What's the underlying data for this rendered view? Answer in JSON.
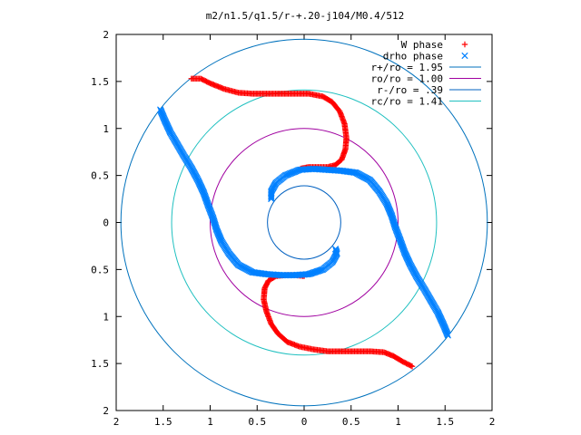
{
  "chart_data": {
    "type": "scatter",
    "title": "m2/n1.5/q1.5/r-+.20-j104/M0.4/512",
    "xlabel": "",
    "ylabel": "",
    "xlim": [
      -2,
      2
    ],
    "ylim": [
      -2,
      2
    ],
    "x_ticks": [
      -2,
      -1.5,
      -1,
      -0.5,
      0,
      0.5,
      1,
      1.5,
      2
    ],
    "y_ticks": [
      -2,
      -1.5,
      -1,
      -0.5,
      0,
      0.5,
      1,
      1.5,
      2
    ],
    "x_tick_labels": [
      "2",
      "1.5",
      "1",
      "0.5",
      "0",
      "0.5",
      "1",
      "1.5",
      "2"
    ],
    "y_tick_labels": [
      "2",
      "1.5",
      "1",
      "0.5",
      "0",
      "0.5",
      "1",
      "1.5",
      "2"
    ],
    "grid": false,
    "legend_position": "top-right",
    "series": [
      {
        "name": "W phase",
        "marker": "plus",
        "color": "#ff0000",
        "points": [
          [
            -1.2,
            1.53
          ],
          [
            -1.1,
            1.53
          ],
          [
            -1.0,
            1.48
          ],
          [
            -0.85,
            1.42
          ],
          [
            -0.7,
            1.38
          ],
          [
            -0.55,
            1.37
          ],
          [
            -0.4,
            1.37
          ],
          [
            -0.25,
            1.37
          ],
          [
            -0.1,
            1.37
          ],
          [
            0.05,
            1.37
          ],
          [
            0.2,
            1.34
          ],
          [
            0.3,
            1.28
          ],
          [
            0.38,
            1.18
          ],
          [
            0.43,
            1.05
          ],
          [
            0.45,
            0.9
          ],
          [
            0.44,
            0.78
          ],
          [
            0.4,
            0.67
          ],
          [
            0.33,
            0.61
          ],
          [
            0.25,
            0.59
          ],
          [
            0.15,
            0.59
          ],
          [
            0.05,
            0.59
          ],
          [
            -0.05,
            0.57
          ],
          [
            1.15,
            -1.53
          ],
          [
            1.05,
            -1.48
          ],
          [
            0.95,
            -1.42
          ],
          [
            0.85,
            -1.38
          ],
          [
            0.7,
            -1.37
          ],
          [
            0.55,
            -1.37
          ],
          [
            0.4,
            -1.37
          ],
          [
            0.25,
            -1.37
          ],
          [
            0.1,
            -1.35
          ],
          [
            -0.05,
            -1.32
          ],
          [
            -0.18,
            -1.27
          ],
          [
            -0.28,
            -1.18
          ],
          [
            -0.35,
            -1.08
          ],
          [
            -0.4,
            -0.95
          ],
          [
            -0.43,
            -0.82
          ],
          [
            -0.42,
            -0.7
          ],
          [
            -0.38,
            -0.62
          ],
          [
            -0.3,
            -0.57
          ],
          [
            -0.2,
            -0.56
          ],
          [
            -0.1,
            -0.56
          ],
          [
            0.0,
            -0.57
          ]
        ]
      },
      {
        "name": "drho phase",
        "marker": "cross",
        "color": "#0080ff",
        "points": [
          [
            -1.53,
            1.2
          ],
          [
            -1.48,
            1.08
          ],
          [
            -1.42,
            0.95
          ],
          [
            -1.35,
            0.83
          ],
          [
            -1.28,
            0.71
          ],
          [
            -1.2,
            0.58
          ],
          [
            -1.13,
            0.45
          ],
          [
            -1.07,
            0.32
          ],
          [
            -1.02,
            0.18
          ],
          [
            -0.97,
            0.05
          ],
          [
            -0.93,
            -0.08
          ],
          [
            -0.88,
            -0.2
          ],
          [
            -0.8,
            -0.33
          ],
          [
            -0.7,
            -0.45
          ],
          [
            -0.55,
            -0.53
          ],
          [
            -0.4,
            -0.55
          ],
          [
            -0.25,
            -0.56
          ],
          [
            -0.1,
            -0.56
          ],
          [
            0.05,
            -0.55
          ],
          [
            0.2,
            -0.5
          ],
          [
            0.3,
            -0.42
          ],
          [
            0.35,
            -0.33
          ],
          [
            0.33,
            -0.27
          ],
          [
            1.53,
            -1.2
          ],
          [
            1.48,
            -1.08
          ],
          [
            1.42,
            -0.95
          ],
          [
            1.35,
            -0.83
          ],
          [
            1.28,
            -0.71
          ],
          [
            1.2,
            -0.58
          ],
          [
            1.13,
            -0.45
          ],
          [
            1.07,
            -0.32
          ],
          [
            1.02,
            -0.18
          ],
          [
            0.97,
            -0.05
          ],
          [
            0.93,
            0.08
          ],
          [
            0.88,
            0.2
          ],
          [
            0.8,
            0.33
          ],
          [
            0.7,
            0.45
          ],
          [
            0.55,
            0.53
          ],
          [
            0.4,
            0.55
          ],
          [
            0.25,
            0.56
          ],
          [
            0.1,
            0.57
          ],
          [
            -0.05,
            0.56
          ],
          [
            -0.2,
            0.5
          ],
          [
            -0.3,
            0.42
          ],
          [
            -0.35,
            0.33
          ],
          [
            -0.35,
            0.25
          ]
        ]
      },
      {
        "name": "r+/ro = 1.95",
        "type": "circle",
        "radius": 1.95,
        "color": "#0072bd"
      },
      {
        "name": "ro/ro = 1.00",
        "type": "circle",
        "radius": 1.0,
        "color": "#a000a0"
      },
      {
        "name": "r-/ro = .39",
        "type": "circle",
        "radius": 0.39,
        "color": "#0060c0"
      },
      {
        "name": "rc/ro = 1.41",
        "type": "circle",
        "radius": 1.41,
        "color": "#20c0c0"
      }
    ]
  }
}
